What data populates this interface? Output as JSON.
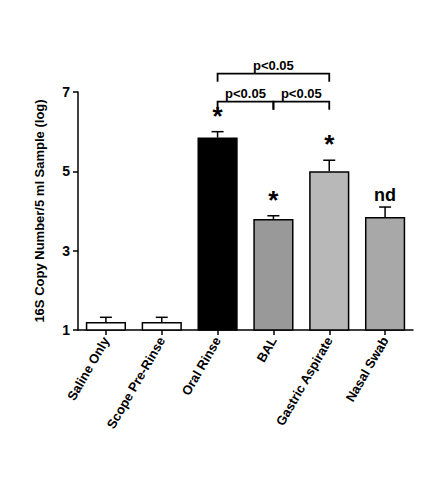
{
  "chart_data": {
    "type": "bar",
    "y_label": "16S Copy Number/5 ml Sample (log)",
    "categories": [
      "Saline Only",
      "Scope Pre-Rinse",
      "Oral Rinse",
      "BAL",
      "Gastric Aspirate",
      "Nasal Swab"
    ],
    "values": [
      1.2,
      1.2,
      5.85,
      3.8,
      5.0,
      3.85
    ],
    "errors": [
      0.12,
      0.12,
      0.15,
      0.08,
      0.28,
      0.25
    ],
    "colors": [
      "#ffffff",
      "#ffffff",
      "#000000",
      "#999999",
      "#b8b8b8",
      "#a8a8a8"
    ],
    "ylim": [
      1,
      7
    ],
    "yticks": [
      1,
      3,
      5,
      7
    ],
    "grid": false,
    "annotations": [
      {
        "category": "Oral Rinse",
        "text": "*"
      },
      {
        "category": "BAL",
        "text": "*"
      },
      {
        "category": "Gastric Aspirate",
        "text": "*"
      },
      {
        "category": "Nasal Swab",
        "text": "nd"
      }
    ],
    "comparisons": [
      {
        "from": "Oral Rinse",
        "to": "BAL",
        "text": "p<0.05"
      },
      {
        "from": "BAL",
        "to": "Gastric Aspirate",
        "text": "p<0.05"
      },
      {
        "from": "Oral Rinse",
        "to": "Gastric Aspirate",
        "text": "p<0.05"
      }
    ]
  }
}
